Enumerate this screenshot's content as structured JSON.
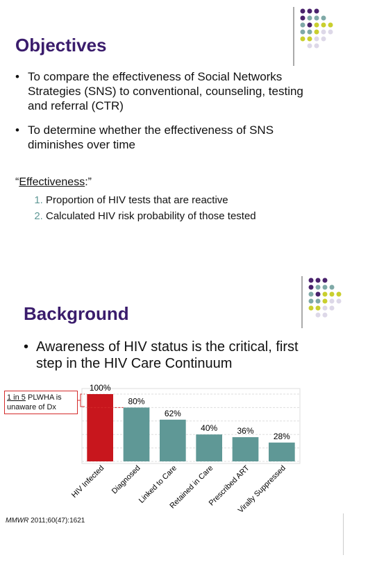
{
  "slides": [
    {
      "title": "Objectives",
      "bullets": [
        "To compare the effectiveness of Social Networks Strategies (SNS) to conventional, counseling, testing and referral (CTR)",
        "To determine whether the effectiveness of SNS diminishes over time"
      ],
      "definition": {
        "open": "“",
        "term": "Effectiveness",
        "close": ":”"
      },
      "items": [
        "Proportion of HIV tests that are reactive",
        "Calculated HIV risk probability of those tested"
      ]
    },
    {
      "title": "Background",
      "bullets": [
        "Awareness of HIV status is the critical, first step in the HIV Care Continuum"
      ],
      "callout": {
        "emphasis": "1 in 5",
        "rest": " PLWHA is unaware of Dx"
      },
      "citation": {
        "journal": "MMWR",
        "rest": " 2011;60(47):1621"
      }
    }
  ],
  "chart_data": {
    "type": "bar",
    "categories": [
      "HIV Infected",
      "Diagnosed",
      "Linked to Care",
      "Retained in Care",
      "Prescribed ART",
      "Virally Suppressed"
    ],
    "values": [
      100,
      80,
      62,
      40,
      36,
      28
    ],
    "value_labels": [
      "100%",
      "80%",
      "62%",
      "40%",
      "36%",
      "28%"
    ],
    "colors": [
      "#c8161d",
      "#5f9896",
      "#5f9896",
      "#5f9896",
      "#5f9896",
      "#5f9896"
    ],
    "ylim": [
      0,
      100
    ],
    "yticks": [
      0,
      20,
      40,
      60,
      80,
      100
    ],
    "grid": true
  }
}
